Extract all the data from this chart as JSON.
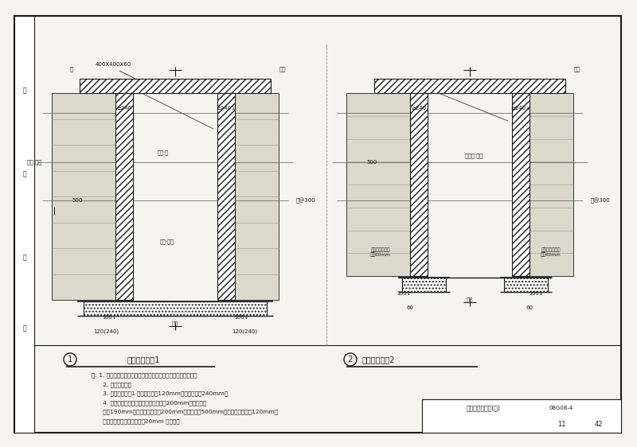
{
  "bg_color": "#f5f4f0",
  "white": "#ffffff",
  "line_color": "#1a1a1a",
  "hatch_dense": "////",
  "hatch_dot": "....",
  "drawing1_title": "门窗洞口做法1",
  "drawing2_title": "门窗洞口做法2",
  "label1_text": "400X400X60",
  "d1_top_left": "板",
  "d1_top_right": "挂筋",
  "d1_ge240_l": "≥240",
  "d1_ge240_r": "≥240↓",
  "d1_left_wall": "衬垫 板架",
  "d1_lintel": "预留·筋",
  "d1_right_dim": "拉@300",
  "d1_dim500": "500",
  "d1_sill": "缓缓·材料",
  "d1_bot_dim_l": "100↓",
  "d1_bot_dim_r": "100↓",
  "d1_base_label": "坡板",
  "d1_bot_120l": "120(240)",
  "d1_bot_120r": "120(240)",
  "d2_top_right": "挂筋",
  "d2_ge240_l": "≥240",
  "d2_ge240_r": "≥240↓",
  "d2_dim500": "500",
  "d2_mid": "木框间 板架",
  "d2_right_dim": "拉@300",
  "d2_wood_l": "木搁置竖固网框\n宽约60mm",
  "d2_wood_r": "木搁置竖固网框\n宽约60mm",
  "d2_bot_l": "100↓",
  "d2_bot_r": "100↓",
  "d2_base_label": "坡板",
  "d2_60l": "60",
  "d2_60r": "60",
  "note1": "注: 1. 做法采用黏麻、藁木、竹末、等草料编制标准构造做法材料",
  "note2": "      2. 门洞口适合。",
  "note3": "      3. 门窗洞口做法1 中骨架处宽为120mm，门墙底宽为240mm。",
  "note4": "      4. 木搁置竖固网框，其外侧做木竹排列200mm宽，直前断",
  "note5": "      框材190mm，当骨架做木排列200mm，木竹排列500mm长，支撑竖分排列120mm，",
  "note6": "      木搁板排采用草本竹木排列20mm 的填木。",
  "sheet_label": "生土墙构造做法(四)",
  "sheet_num": "08G08-4",
  "page": "11",
  "total": "42",
  "left_strip_labels": [
    [
      "建",
      0.82
    ],
    [
      "结",
      0.62
    ],
    [
      "水",
      0.42
    ],
    [
      "暖",
      0.25
    ]
  ]
}
